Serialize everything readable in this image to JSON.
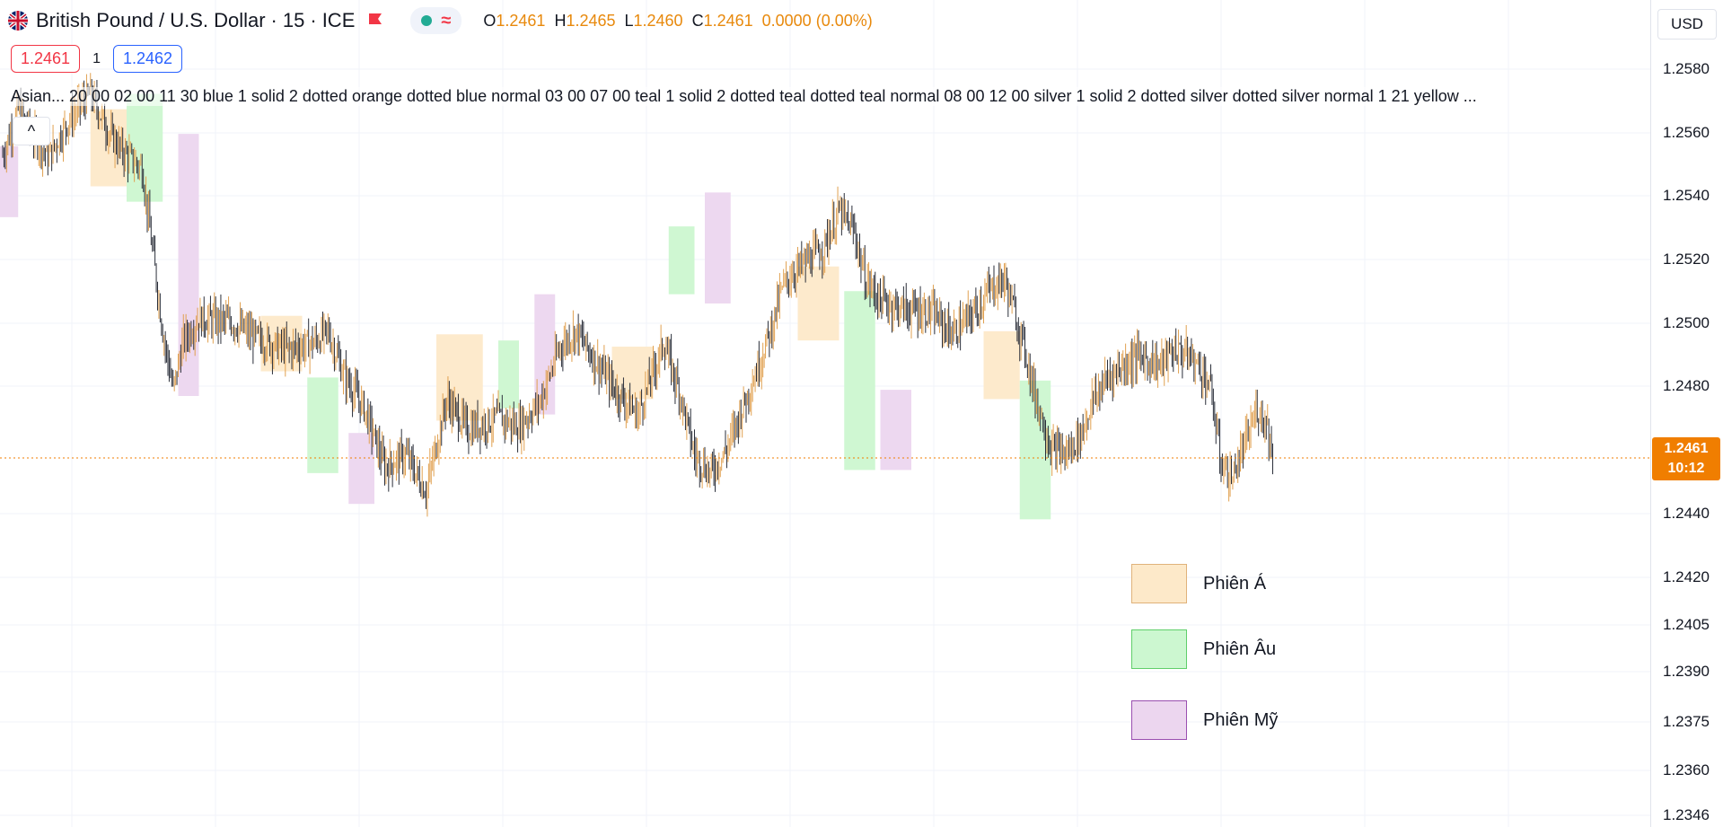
{
  "header": {
    "symbol": "British Pound / U.S. Dollar",
    "interval": "15",
    "exchange": "ICE",
    "open_key": "O",
    "open": "1.2461",
    "high_key": "H",
    "high": "1.2465",
    "low_key": "L",
    "low": "1.2460",
    "close_key": "C",
    "close": "1.2461",
    "change": "0.0000 (0.00%)",
    "bid": "1.2461",
    "spread": "1",
    "ask": "1.2462"
  },
  "indicator_text": "Asian... 20 00 02 00 11 30 blue 1 solid 2 dotted orange dotted blue normal 03 00 07 00 teal 1 solid 2 dotted teal dotted teal normal 08 00 12 00 silver 1 solid 2 dotted silver dotted silver normal 1 21 yellow ...",
  "axis": {
    "currency": "USD",
    "ticks": [
      "1.2580",
      "1.2560",
      "1.2540",
      "1.2520",
      "1.2500",
      "1.2480",
      "1.2440",
      "1.2420",
      "1.2405",
      "1.2390",
      "1.2375",
      "1.2360",
      "1.2346"
    ],
    "last_price": "1.2461",
    "countdown": "10:12"
  },
  "legend": [
    {
      "label": "Phiên Á",
      "fill": "#fde9c9",
      "stroke": "#e0b27a"
    },
    {
      "label": "Phiên Âu",
      "fill": "#ccf7d0",
      "stroke": "#5fcf6a"
    },
    {
      "label": "Phiên Mỹ",
      "fill": "#ecd6ef",
      "stroke": "#9a4fb0"
    }
  ],
  "colors": {
    "asia": "#fde9c9",
    "europe": "#ccf7d0",
    "america": "#ecd6ef",
    "accent": "#f07e00",
    "up_bar": "#e0a050",
    "down_bar": "#2a2e39"
  },
  "chart_data": {
    "type": "ohlc-bar",
    "title": "British Pound / U.S. Dollar · 15 · ICE",
    "ylim": [
      1.2346,
      1.2588
    ],
    "last_price": 1.2461,
    "price_path": [
      [
        0,
        1.256
      ],
      [
        3,
        1.2575
      ],
      [
        6,
        1.2566
      ],
      [
        9,
        1.256
      ],
      [
        13,
        1.2572
      ],
      [
        17,
        1.258
      ],
      [
        21,
        1.2566
      ],
      [
        24,
        1.256
      ],
      [
        27,
        1.2556
      ],
      [
        31,
        1.2503
      ],
      [
        33,
        1.2484
      ],
      [
        35,
        1.25
      ],
      [
        38,
        1.2507
      ],
      [
        44,
        1.2506
      ],
      [
        50,
        1.25
      ],
      [
        55,
        1.2497
      ],
      [
        60,
        1.2499
      ],
      [
        63,
        1.2503
      ],
      [
        66,
        1.2489
      ],
      [
        70,
        1.2478
      ],
      [
        74,
        1.2459
      ],
      [
        78,
        1.2463
      ],
      [
        82,
        1.2451
      ],
      [
        86,
        1.2481
      ],
      [
        90,
        1.2471
      ],
      [
        96,
        1.2475
      ],
      [
        100,
        1.2472
      ],
      [
        104,
        1.248
      ],
      [
        108,
        1.2498
      ],
      [
        111,
        1.2503
      ],
      [
        115,
        1.2493
      ],
      [
        119,
        1.2483
      ],
      [
        123,
        1.2476
      ],
      [
        126,
        1.249
      ],
      [
        128,
        1.2499
      ],
      [
        131,
        1.2484
      ],
      [
        134,
        1.2463
      ],
      [
        137,
        1.2457
      ],
      [
        140,
        1.2464
      ],
      [
        143,
        1.2477
      ],
      [
        146,
        1.249
      ],
      [
        149,
        1.2505
      ],
      [
        151,
        1.2517
      ],
      [
        153,
        1.2522
      ],
      [
        156,
        1.2526
      ],
      [
        159,
        1.253
      ],
      [
        162,
        1.2542
      ],
      [
        165,
        1.2535
      ],
      [
        167,
        1.252
      ],
      [
        170,
        1.2513
      ],
      [
        175,
        1.251
      ],
      [
        180,
        1.2509
      ],
      [
        184,
        1.2502
      ],
      [
        188,
        1.2509
      ],
      [
        191,
        1.2516
      ],
      [
        194,
        1.252
      ],
      [
        196,
        1.2509
      ],
      [
        198,
        1.2497
      ],
      [
        200,
        1.2482
      ],
      [
        203,
        1.2465
      ],
      [
        206,
        1.2463
      ],
      [
        209,
        1.247
      ],
      [
        211,
        1.248
      ],
      [
        214,
        1.2488
      ],
      [
        217,
        1.2492
      ],
      [
        220,
        1.2495
      ],
      [
        224,
        1.2492
      ],
      [
        227,
        1.2497
      ],
      [
        230,
        1.2495
      ],
      [
        232,
        1.2491
      ],
      [
        234,
        1.2484
      ],
      [
        236,
        1.246
      ],
      [
        238,
        1.2455
      ],
      [
        241,
        1.2468
      ],
      [
        243,
        1.2478
      ],
      [
        245,
        1.2473
      ],
      [
        246,
        1.2461
      ]
    ]
  }
}
